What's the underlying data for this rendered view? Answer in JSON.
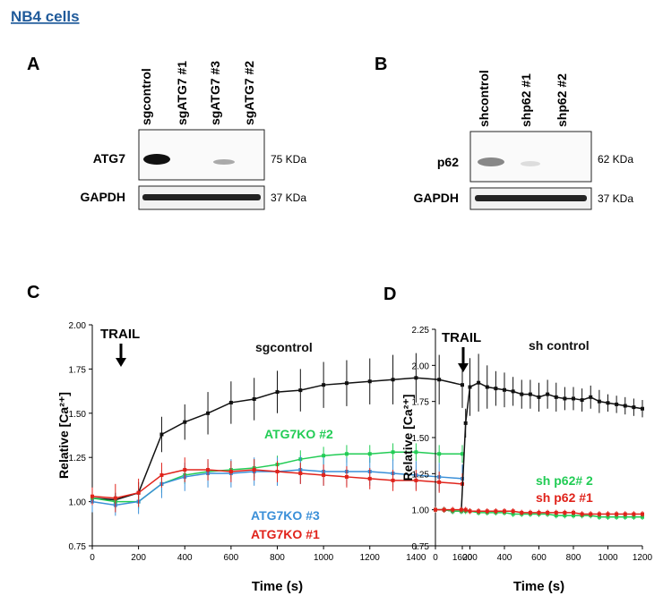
{
  "title": "NB4 cells",
  "blots": [
    {
      "label": "A",
      "lanes": [
        "sgcontrol",
        "sgATG7 #1",
        "sgATG7 #3",
        "sgATG7 #2"
      ],
      "rows": [
        {
          "protein": "ATG7",
          "size": "75 KDa"
        },
        {
          "protein": "GAPDH",
          "size": "37 KDa"
        }
      ]
    },
    {
      "label": "B",
      "lanes": [
        "shcontrol",
        "shp62 #1",
        "shp62 #2"
      ],
      "rows": [
        {
          "protein": "p62",
          "size": "62 KDa"
        },
        {
          "protein": "GAPDH",
          "size": "37 KDa"
        }
      ]
    }
  ],
  "chart_data": [
    {
      "type": "line",
      "label": "C",
      "annotation": "TRAIL",
      "xlabel": "Time (s)",
      "ylabel": "Relative [Ca²⁺]",
      "x": [
        0,
        100,
        200,
        300,
        400,
        500,
        600,
        700,
        800,
        900,
        1000,
        1100,
        1200,
        1300,
        1400,
        1500,
        1600
      ],
      "series": [
        {
          "name": "sgcontrol",
          "color": "#111111",
          "values": [
            1.02,
            1.01,
            1.05,
            1.38,
            1.45,
            1.5,
            1.56,
            1.58,
            1.62,
            1.63,
            1.66,
            1.67,
            1.68,
            1.69,
            1.7,
            1.69,
            1.66
          ],
          "errors": [
            0.04,
            0.04,
            0.06,
            0.1,
            0.1,
            0.12,
            0.12,
            0.12,
            0.12,
            0.12,
            0.13,
            0.13,
            0.13,
            0.14,
            0.14,
            0.14,
            0.13
          ]
        },
        {
          "name": "ATG7KO #2",
          "color": "#22cc55",
          "values": [
            1.02,
            1.0,
            1.0,
            1.1,
            1.15,
            1.17,
            1.18,
            1.19,
            1.21,
            1.24,
            1.26,
            1.27,
            1.27,
            1.28,
            1.28,
            1.27,
            1.27
          ],
          "errors": [
            0.04,
            0.04,
            0.04,
            0.05,
            0.05,
            0.05,
            0.05,
            0.05,
            0.05,
            0.05,
            0.05,
            0.05,
            0.05,
            0.05,
            0.05,
            0.05,
            0.05
          ]
        },
        {
          "name": "ATG7KO #3",
          "color": "#3a8fd8",
          "values": [
            1.0,
            0.98,
            1.0,
            1.1,
            1.14,
            1.16,
            1.16,
            1.17,
            1.17,
            1.18,
            1.17,
            1.17,
            1.17,
            1.16,
            1.15,
            1.14,
            1.13
          ],
          "errors": [
            0.06,
            0.06,
            0.07,
            0.08,
            0.08,
            0.08,
            0.08,
            0.08,
            0.08,
            0.08,
            0.08,
            0.08,
            0.08,
            0.08,
            0.08,
            0.08,
            0.08
          ]
        },
        {
          "name": "ATG7KO #1",
          "color": "#e0231b",
          "values": [
            1.03,
            1.02,
            1.05,
            1.15,
            1.18,
            1.18,
            1.17,
            1.18,
            1.17,
            1.16,
            1.15,
            1.14,
            1.13,
            1.12,
            1.12,
            1.11,
            1.1
          ],
          "errors": [
            0.05,
            0.08,
            0.08,
            0.07,
            0.07,
            0.06,
            0.06,
            0.06,
            0.06,
            0.06,
            0.06,
            0.06,
            0.06,
            0.06,
            0.06,
            0.06,
            0.06
          ]
        }
      ],
      "xlim": [
        0,
        1600
      ],
      "xticks": [
        0,
        200,
        400,
        600,
        800,
        1000,
        1200,
        1400,
        1600
      ],
      "ylim": [
        0.75,
        2.0
      ],
      "yticks": [
        {
          "value": 0.75,
          "label": "0.75"
        },
        {
          "value": 1.0,
          "label": "1.00"
        },
        {
          "value": 1.25,
          "label": "1.25"
        },
        {
          "value": 1.5,
          "label": "1.50"
        },
        {
          "value": 1.75,
          "label": "1.75"
        },
        {
          "value": 2.0,
          "label": "2.00"
        }
      ]
    },
    {
      "type": "line",
      "label": "D",
      "annotation": "TRAIL",
      "xlabel": "Time (s)",
      "ylabel": "Relative [Ca²⁺]",
      "x": [
        0,
        50,
        100,
        150,
        175,
        200,
        250,
        300,
        350,
        400,
        450,
        500,
        550,
        600,
        650,
        700,
        750,
        800,
        850,
        900,
        950,
        1000,
        1050,
        1100,
        1150,
        1200
      ],
      "series": [
        {
          "name": "sh control",
          "color": "#111111",
          "values": [
            1.0,
            1.0,
            0.99,
            0.99,
            1.6,
            1.85,
            1.88,
            1.85,
            1.84,
            1.83,
            1.82,
            1.8,
            1.8,
            1.78,
            1.8,
            1.78,
            1.77,
            1.77,
            1.76,
            1.78,
            1.75,
            1.74,
            1.73,
            1.72,
            1.71,
            1.7
          ],
          "errors": [
            0.02,
            0.02,
            0.02,
            0.02,
            0.1,
            0.2,
            0.2,
            0.15,
            0.12,
            0.12,
            0.1,
            0.1,
            0.1,
            0.1,
            0.1,
            0.1,
            0.08,
            0.08,
            0.08,
            0.08,
            0.08,
            0.06,
            0.06,
            0.06,
            0.06,
            0.06
          ]
        },
        {
          "name": "sh p62# 2",
          "color": "#22cc55",
          "values": [
            1.0,
            1.0,
            0.99,
            0.99,
            0.99,
            0.99,
            0.98,
            0.98,
            0.98,
            0.98,
            0.97,
            0.97,
            0.97,
            0.97,
            0.97,
            0.96,
            0.96,
            0.96,
            0.96,
            0.96,
            0.95,
            0.95,
            0.95,
            0.95,
            0.95,
            0.95
          ],
          "errors": [
            0.02,
            0.02,
            0.02,
            0.02,
            0.02,
            0.02,
            0.02,
            0.02,
            0.02,
            0.02,
            0.02,
            0.02,
            0.02,
            0.02,
            0.02,
            0.02,
            0.02,
            0.02,
            0.02,
            0.02,
            0.02,
            0.02,
            0.02,
            0.02,
            0.02,
            0.02
          ]
        },
        {
          "name": "sh p62 #1",
          "color": "#e0231b",
          "values": [
            1.0,
            1.0,
            1.0,
            1.0,
            1.0,
            0.99,
            0.99,
            0.99,
            0.99,
            0.99,
            0.99,
            0.98,
            0.98,
            0.98,
            0.98,
            0.98,
            0.98,
            0.98,
            0.97,
            0.97,
            0.97,
            0.97,
            0.97,
            0.97,
            0.97,
            0.97
          ],
          "errors": [
            0.02,
            0.02,
            0.02,
            0.02,
            0.02,
            0.02,
            0.02,
            0.02,
            0.02,
            0.02,
            0.02,
            0.02,
            0.02,
            0.02,
            0.02,
            0.02,
            0.02,
            0.02,
            0.02,
            0.02,
            0.02,
            0.02,
            0.02,
            0.02,
            0.02,
            0.02
          ]
        }
      ],
      "xlim": [
        0,
        1200
      ],
      "xticks": [
        0,
        200,
        400,
        600,
        800,
        1000,
        1200
      ],
      "ylim": [
        0.75,
        2.25
      ],
      "yticks": [
        {
          "value": 0.75,
          "label": "0.75"
        },
        {
          "value": 1.0,
          "label": "1.00"
        },
        {
          "value": 1.25,
          "label": "1.25"
        },
        {
          "value": 1.5,
          "label": "1.50"
        },
        {
          "value": 1.75,
          "label": "1.75"
        },
        {
          "value": 2.0,
          "label": "2.00"
        },
        {
          "value": 2.25,
          "label": "2.25"
        }
      ]
    }
  ]
}
